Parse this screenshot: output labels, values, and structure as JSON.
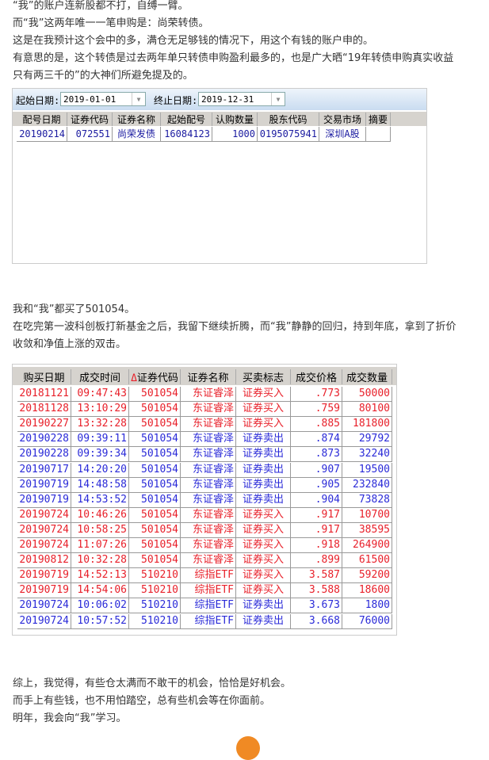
{
  "paragraphs1": [
    "“我”的账户连新股都不打，自缚一臂。",
    "而“我”这两年唯一一笔申购是：尚荣转债。",
    "这是在我预计这个会中的多，满仓无足够钱的情况下，用这个有钱的账户申的。",
    "有意思的是，这个转债是过去两年单只转债申购盈利最多的，也是广大晒“19年转债申购真实收益",
    "只有两三千的”的大神们所避免提及的。"
  ],
  "shot1": {
    "start_label": "起始日期:",
    "start_value": "2019-01-01",
    "end_label": "终止日期:",
    "end_value": "2019-12-31",
    "headers": [
      "配号日期",
      "证券代码",
      "证券名称",
      "起始配号",
      "认购数量",
      "股东代码",
      "交易市场",
      "摘要"
    ],
    "rows": [
      [
        "20190214",
        "072551",
        "尚荣发债",
        "16084123",
        "1000",
        "0195075941",
        "深圳A股",
        ""
      ]
    ]
  },
  "paragraphs2": [
    "我和“我”都买了501054。",
    "在吃完第一波科创板打新基金之后，我留下继续折腾，而“我”静静的回归，持到年底，拿到了折价",
    "收敛和净值上涨的双击。"
  ],
  "shot2": {
    "sort_marker": "Δ",
    "headers": [
      "购买日期",
      "成交时间",
      "证券代码",
      "证券名称",
      "买卖标志",
      "成交价格",
      "成交数量"
    ],
    "colors": {
      "buy": "#e8202a",
      "sell": "#2a2ad8"
    },
    "rows": [
      [
        "20181121",
        "09:47:43",
        "501054",
        "东证睿泽",
        "证券买入",
        ".773",
        "50000"
      ],
      [
        "20181128",
        "13:10:29",
        "501054",
        "东证睿泽",
        "证券买入",
        ".759",
        "80100"
      ],
      [
        "20190227",
        "13:32:28",
        "501054",
        "东证睿泽",
        "证券买入",
        ".885",
        "181800"
      ],
      [
        "20190228",
        "09:39:11",
        "501054",
        "东证睿泽",
        "证券卖出",
        ".874",
        "29792"
      ],
      [
        "20190228",
        "09:39:34",
        "501054",
        "东证睿泽",
        "证券卖出",
        ".873",
        "32240"
      ],
      [
        "20190717",
        "14:20:20",
        "501054",
        "东证睿泽",
        "证券卖出",
        ".907",
        "19500"
      ],
      [
        "20190719",
        "14:48:58",
        "501054",
        "东证睿泽",
        "证券卖出",
        ".905",
        "232840"
      ],
      [
        "20190719",
        "14:53:52",
        "501054",
        "东证睿泽",
        "证券卖出",
        ".904",
        "73828"
      ],
      [
        "20190724",
        "10:46:26",
        "501054",
        "东证睿泽",
        "证券买入",
        ".917",
        "10700"
      ],
      [
        "20190724",
        "10:58:25",
        "501054",
        "东证睿泽",
        "证券买入",
        ".917",
        "38595"
      ],
      [
        "20190724",
        "11:07:26",
        "501054",
        "东证睿泽",
        "证券买入",
        ".918",
        "264900"
      ],
      [
        "20190812",
        "10:32:28",
        "501054",
        "东证睿泽",
        "证券买入",
        ".899",
        "61500"
      ],
      [
        "20190719",
        "14:52:13",
        "510210",
        "综指ETF",
        "证券买入",
        "3.587",
        "59200"
      ],
      [
        "20190719",
        "14:54:06",
        "510210",
        "综指ETF",
        "证券买入",
        "3.588",
        "18600"
      ],
      [
        "20190724",
        "10:06:02",
        "510210",
        "综指ETF",
        "证券卖出",
        "3.673",
        "1800"
      ],
      [
        "20190724",
        "10:57:52",
        "510210",
        "综指ETF",
        "证券卖出",
        "3.668",
        "76000"
      ]
    ]
  },
  "paragraphs3": [
    "综上，我觉得，有些仓太满而不敢干的机会，恰恰是好机会。",
    "而手上有些钱，也不用怕踏空，总有些机会等在你面前。",
    "明年，我会向“我”学习。"
  ]
}
